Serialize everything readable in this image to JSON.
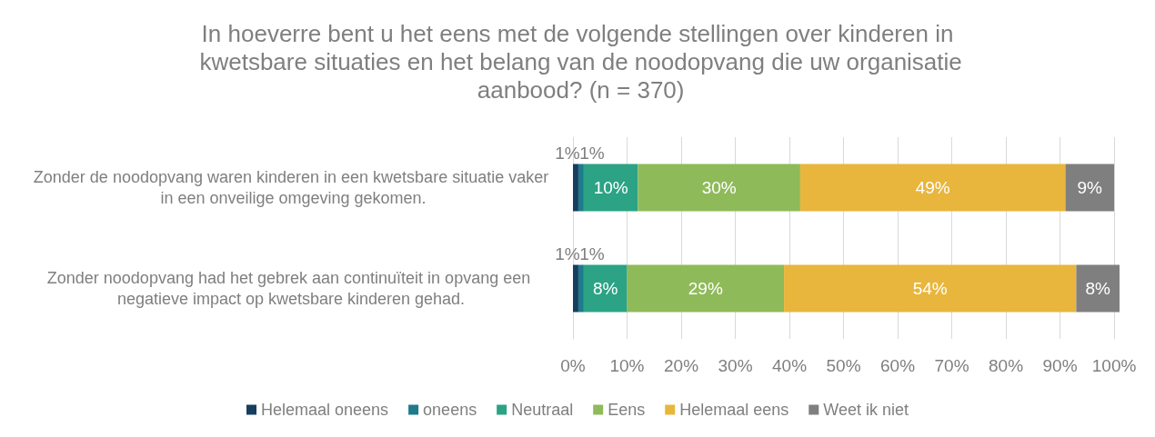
{
  "chart_data": {
    "type": "bar",
    "orientation": "horizontal",
    "stacked": true,
    "title": "In hoeverre bent u het eens met de volgende stellingen over kinderen in kwetsbare situaties en het belang van de noodopvang die uw organisatie aanbood? (n = 370)",
    "categories": [
      "Zonder de noodopvang waren kinderen in een kwetsbare situatie vaker in een onveilige omgeving gekomen.",
      "Zonder noodopvang had het gebrek aan continuïteit in opvang een negatieve impact op kwetsbare kinderen gehad."
    ],
    "series": [
      {
        "name": "Helemaal oneens",
        "color": "#173e5f",
        "values": [
          1,
          1
        ],
        "value_labels": [
          "1%",
          "1%"
        ]
      },
      {
        "name": "oneens",
        "color": "#1f7a8c",
        "values": [
          1,
          1
        ],
        "value_labels": [
          "1%",
          "1%"
        ]
      },
      {
        "name": "Neutraal",
        "color": "#2ba384",
        "values": [
          10,
          8
        ],
        "value_labels": [
          "10%",
          "8%"
        ]
      },
      {
        "name": "Eens",
        "color": "#8fba5a",
        "values": [
          30,
          29
        ],
        "value_labels": [
          "30%",
          "29%"
        ]
      },
      {
        "name": "Helemaal eens",
        "color": "#e8b63c",
        "values": [
          49,
          54
        ],
        "value_labels": [
          "49%",
          "54%"
        ]
      },
      {
        "name": "Weet ik niet",
        "color": "#7f7f7f",
        "values": [
          9,
          8
        ],
        "value_labels": [
          "9%",
          "8%"
        ]
      }
    ],
    "xlim": [
      0,
      101
    ],
    "xticks": [
      {
        "value": 0,
        "label": "0%"
      },
      {
        "value": 10,
        "label": "10%"
      },
      {
        "value": 20,
        "label": "20%"
      },
      {
        "value": 30,
        "label": "30%"
      },
      {
        "value": 40,
        "label": "40%"
      },
      {
        "value": 50,
        "label": "50%"
      },
      {
        "value": 60,
        "label": "60%"
      },
      {
        "value": 70,
        "label": "70%"
      },
      {
        "value": 80,
        "label": "80%"
      },
      {
        "value": 90,
        "label": "90%"
      },
      {
        "value": 100,
        "label": "100%"
      }
    ],
    "grid": "x",
    "legend": "bottom"
  }
}
